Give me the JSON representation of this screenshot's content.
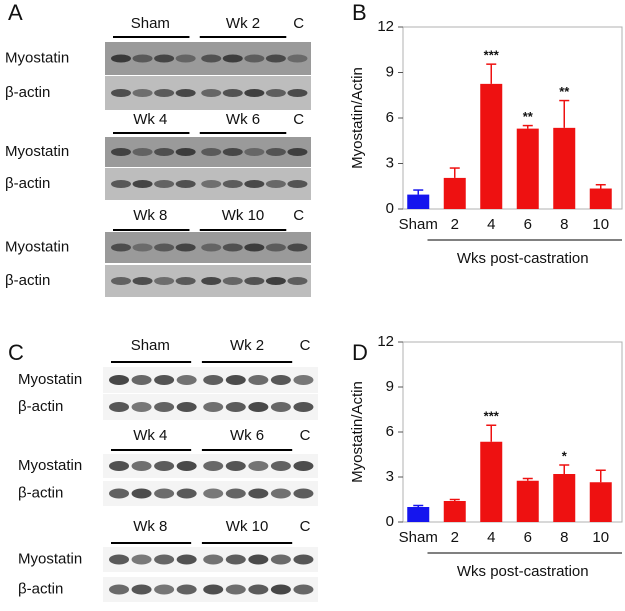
{
  "panel_labels": [
    "A",
    "B",
    "C",
    "D"
  ],
  "blots": [
    {
      "groups": [
        {
          "headers": [
            "Sham",
            "Wk 2",
            "C"
          ],
          "rows": [
            "Myostatin",
            "β-actin"
          ]
        },
        {
          "headers": [
            "Wk 4",
            "Wk 6",
            "C"
          ],
          "rows": [
            "Myostatin",
            "β-actin"
          ]
        },
        {
          "headers": [
            "Wk 8",
            "Wk 10",
            "C"
          ],
          "rows": [
            "Myostatin",
            "β-actin"
          ]
        }
      ]
    },
    {
      "groups": [
        {
          "headers": [
            "Sham",
            "Wk 2",
            "C"
          ],
          "rows": [
            "Myostatin",
            "β-actin"
          ]
        },
        {
          "headers": [
            "Wk 4",
            "Wk 6",
            "C"
          ],
          "rows": [
            "Myostatin",
            "β-actin"
          ]
        },
        {
          "headers": [
            "Wk 8",
            "Wk 10",
            "C"
          ],
          "rows": [
            "Myostatin",
            "β-actin"
          ]
        }
      ]
    }
  ],
  "chart_data": [
    {
      "type": "bar",
      "ylabel": "Myostatin/Actin",
      "xlabel": "Wks post-castration",
      "categories": [
        "Sham",
        "2",
        "4",
        "6",
        "8",
        "10"
      ],
      "values": [
        0.95,
        2.05,
        8.25,
        5.3,
        5.35,
        1.35
      ],
      "errors": [
        0.3,
        0.65,
        1.3,
        0.2,
        1.8,
        0.25
      ],
      "significance": [
        null,
        null,
        "***",
        "**",
        "**",
        null
      ],
      "colors": [
        "#1515ee",
        "#ee1111",
        "#ee1111",
        "#ee1111",
        "#ee1111",
        "#ee1111"
      ],
      "ylim": [
        0,
        12
      ],
      "yticks": [
        0,
        3,
        6,
        9,
        12
      ]
    },
    {
      "type": "bar",
      "ylabel": "Myostatin/Actin",
      "xlabel": "Wks post-castration",
      "categories": [
        "Sham",
        "2",
        "4",
        "6",
        "8",
        "10"
      ],
      "values": [
        1.0,
        1.4,
        5.35,
        2.75,
        3.2,
        2.65
      ],
      "errors": [
        0.1,
        0.1,
        1.1,
        0.15,
        0.6,
        0.8
      ],
      "significance": [
        null,
        null,
        "***",
        null,
        "*",
        null
      ],
      "colors": [
        "#1515ee",
        "#ee1111",
        "#ee1111",
        "#ee1111",
        "#ee1111",
        "#ee1111"
      ],
      "ylim": [
        0,
        12
      ],
      "yticks": [
        0,
        3,
        6,
        9,
        12
      ]
    }
  ]
}
